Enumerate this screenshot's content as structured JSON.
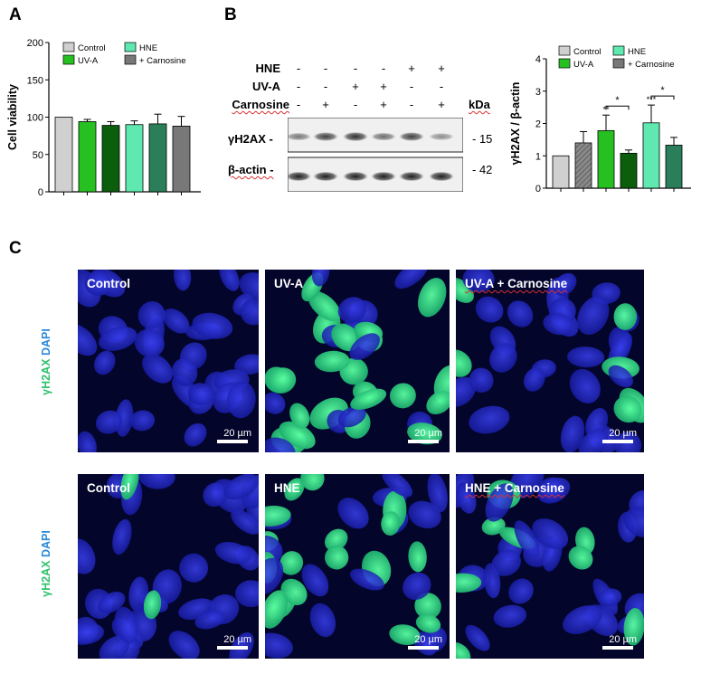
{
  "panels": {
    "a": "A",
    "b": "B",
    "c": "C"
  },
  "chart_data": [
    {
      "type": "bar",
      "panel": "A",
      "ylabel": "Cell viability",
      "ylim": [
        0,
        200
      ],
      "yticks": [
        0,
        50,
        100,
        150,
        200
      ],
      "legend": [
        "Control",
        "UV-A",
        "HNE",
        "+ Carnosine"
      ],
      "legend_placement": "top",
      "bars": [
        {
          "group": "Control",
          "value": 100,
          "err": 0,
          "color": "#d0d0d0",
          "pattern": "solid"
        },
        {
          "group": "UV-A",
          "value": 94,
          "err": 3,
          "color": "#27c021",
          "pattern": "solid"
        },
        {
          "group": "UV-A + Carnosine",
          "value": 89,
          "err": 5,
          "color": "#0b5e0b",
          "pattern": "solid"
        },
        {
          "group": "HNE",
          "value": 90,
          "err": 5,
          "color": "#5fe8b0",
          "pattern": "solid"
        },
        {
          "group": "HNE + Carnosine",
          "value": 91,
          "err": 13,
          "color": "#2a7f5a",
          "pattern": "solid"
        },
        {
          "group": "Carnosine",
          "value": 88,
          "err": 13,
          "color": "#787878",
          "pattern": "solid"
        }
      ]
    },
    {
      "type": "bar",
      "panel": "B",
      "ylabel": "γH2AX / β-actin",
      "ylim": [
        0,
        4
      ],
      "yticks": [
        0,
        1,
        2,
        3,
        4
      ],
      "legend": [
        "Control",
        "UV-A",
        "HNE",
        "+ Carnosine"
      ],
      "legend_placement": "top",
      "bars": [
        {
          "group": "Control",
          "value": 1.0,
          "err": 0,
          "color": "#d0d0d0",
          "pattern": "solid"
        },
        {
          "group": "Carnosine",
          "value": 1.4,
          "err": 0.35,
          "color": "#787878",
          "pattern": "hatched"
        },
        {
          "group": "UV-A",
          "value": 1.78,
          "err": 0.48,
          "color": "#27c021",
          "pattern": "solid",
          "sig": "**"
        },
        {
          "group": "UV-A + Carnosine",
          "value": 1.08,
          "err": 0.1,
          "color": "#0b5e0b",
          "pattern": "solid"
        },
        {
          "group": "HNE",
          "value": 2.02,
          "err": 0.55,
          "color": "#5fe8b0",
          "pattern": "solid",
          "sig": "***"
        },
        {
          "group": "HNE + Carnosine",
          "value": 1.33,
          "err": 0.24,
          "color": "#2a7f5a",
          "pattern": "solid"
        }
      ],
      "brackets": [
        {
          "from": 2,
          "to": 3,
          "label": "*"
        },
        {
          "from": 4,
          "to": 5,
          "label": "*"
        }
      ]
    }
  ],
  "blot": {
    "treatments": [
      {
        "label": "HNE",
        "signs": [
          "-",
          "-",
          "-",
          "-",
          "+",
          "+"
        ]
      },
      {
        "label": "UV-A",
        "signs": [
          "-",
          "-",
          "+",
          "+",
          "-",
          "-"
        ]
      },
      {
        "label": "Carnosine",
        "signs": [
          "-",
          "+",
          "-",
          "+",
          "-",
          "+"
        ]
      }
    ],
    "kda_header": "kDa",
    "rows": [
      {
        "label": "γH2AX -",
        "kda": "- 15",
        "intensities": [
          0.55,
          0.8,
          0.88,
          0.6,
          0.8,
          0.45
        ]
      },
      {
        "label": "β-actin -",
        "kda": "- 42",
        "intensities": [
          0.95,
          0.95,
          0.95,
          0.95,
          0.95,
          0.95
        ]
      }
    ]
  },
  "micrographs": {
    "stain_label": {
      "green": "γH2AX",
      "blue": "DAPI"
    },
    "scalebar": "20 µm",
    "rows": [
      {
        "captions": [
          "Control",
          "UV-A",
          "UV-A + Carnosine"
        ]
      },
      {
        "captions": [
          "Control",
          "HNE",
          "HNE + Carnosine"
        ]
      }
    ]
  }
}
